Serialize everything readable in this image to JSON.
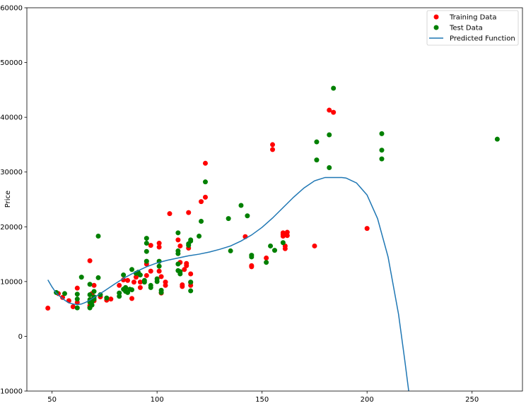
{
  "chart_data": {
    "type": "scatter",
    "title": "",
    "xlabel": "",
    "ylabel": "Price",
    "xlim": [
      38,
      274
    ],
    "ylim": [
      -10000,
      60000
    ],
    "xticks": [
      50,
      100,
      150,
      200,
      250
    ],
    "yticks": [
      -10000,
      0,
      10000,
      20000,
      30000,
      40000,
      50000,
      60000
    ],
    "grid": false,
    "legend_position": "top-right",
    "series": [
      {
        "name": "Training Data",
        "kind": "scatter",
        "color": "#ff0000",
        "points": [
          [
            48,
            5150
          ],
          [
            53,
            7800
          ],
          [
            55,
            7100
          ],
          [
            58,
            6500
          ],
          [
            60,
            5400
          ],
          [
            62,
            6200
          ],
          [
            62,
            8800
          ],
          [
            68,
            13800
          ],
          [
            68,
            5600
          ],
          [
            68,
            5300
          ],
          [
            69,
            6700
          ],
          [
            69,
            7800
          ],
          [
            70,
            9300
          ],
          [
            70,
            6500
          ],
          [
            73,
            7200
          ],
          [
            76,
            6600
          ],
          [
            78,
            6800
          ],
          [
            82,
            9300
          ],
          [
            84,
            10300
          ],
          [
            85,
            8900
          ],
          [
            86,
            10200
          ],
          [
            88,
            6900
          ],
          [
            89,
            9900
          ],
          [
            90,
            10800
          ],
          [
            91,
            11300
          ],
          [
            92,
            9900
          ],
          [
            92,
            8900
          ],
          [
            95,
            13200
          ],
          [
            95,
            11100
          ],
          [
            97,
            16600
          ],
          [
            97,
            11900
          ],
          [
            101,
            17000
          ],
          [
            101,
            16300
          ],
          [
            101,
            11900
          ],
          [
            102,
            10900
          ],
          [
            102,
            7900
          ],
          [
            104,
            9300
          ],
          [
            104,
            9900
          ],
          [
            106,
            22400
          ],
          [
            110,
            17600
          ],
          [
            111,
            16500
          ],
          [
            111,
            13500
          ],
          [
            112,
            9400
          ],
          [
            112,
            9100
          ],
          [
            113,
            12200
          ],
          [
            114,
            13300
          ],
          [
            114,
            12900
          ],
          [
            115,
            16100
          ],
          [
            115,
            22600
          ],
          [
            116,
            11400
          ],
          [
            116,
            9800
          ],
          [
            116,
            9300
          ],
          [
            121,
            24600
          ],
          [
            123,
            31600
          ],
          [
            123,
            25400
          ],
          [
            142,
            18200
          ],
          [
            145,
            12900
          ],
          [
            145,
            12700
          ],
          [
            152,
            14300
          ],
          [
            155,
            35000
          ],
          [
            155,
            34100
          ],
          [
            160,
            18900
          ],
          [
            160,
            18300
          ],
          [
            160,
            18600
          ],
          [
            161,
            16000
          ],
          [
            161,
            16500
          ],
          [
            162,
            18400
          ],
          [
            162,
            19000
          ],
          [
            175,
            16500
          ],
          [
            182,
            41300
          ],
          [
            184,
            40900
          ],
          [
            200,
            19700
          ]
        ]
      },
      {
        "name": "Test Data",
        "kind": "scatter",
        "color": "#008000",
        "points": [
          [
            52,
            8000
          ],
          [
            56,
            7800
          ],
          [
            62,
            5200
          ],
          [
            62,
            6800
          ],
          [
            62,
            7700
          ],
          [
            64,
            10800
          ],
          [
            68,
            9500
          ],
          [
            68,
            7600
          ],
          [
            68,
            6700
          ],
          [
            68,
            6200
          ],
          [
            68,
            5200
          ],
          [
            69,
            5700
          ],
          [
            69,
            6300
          ],
          [
            70,
            7200
          ],
          [
            70,
            8200
          ],
          [
            70,
            6800
          ],
          [
            72,
            18300
          ],
          [
            72,
            10700
          ],
          [
            73,
            7600
          ],
          [
            76,
            7000
          ],
          [
            82,
            7900
          ],
          [
            82,
            7300
          ],
          [
            84,
            11200
          ],
          [
            84,
            8600
          ],
          [
            85,
            8200
          ],
          [
            85,
            8900
          ],
          [
            86,
            8000
          ],
          [
            87,
            8600
          ],
          [
            88,
            12200
          ],
          [
            88,
            8500
          ],
          [
            90,
            11500
          ],
          [
            91,
            11700
          ],
          [
            92,
            11200
          ],
          [
            94,
            10200
          ],
          [
            94,
            9900
          ],
          [
            95,
            17900
          ],
          [
            95,
            17000
          ],
          [
            95,
            15500
          ],
          [
            95,
            13700
          ],
          [
            97,
            9300
          ],
          [
            97,
            8900
          ],
          [
            100,
            10500
          ],
          [
            100,
            10000
          ],
          [
            101,
            13700
          ],
          [
            101,
            12800
          ],
          [
            102,
            8400
          ],
          [
            102,
            8000
          ],
          [
            110,
            18900
          ],
          [
            110,
            15600
          ],
          [
            110,
            15100
          ],
          [
            110,
            13200
          ],
          [
            110,
            12000
          ],
          [
            111,
            11800
          ],
          [
            111,
            11400
          ],
          [
            115,
            16600
          ],
          [
            115,
            16900
          ],
          [
            116,
            17400
          ],
          [
            116,
            17600
          ],
          [
            116,
            9900
          ],
          [
            116,
            8300
          ],
          [
            120,
            18300
          ],
          [
            121,
            21000
          ],
          [
            123,
            28200
          ],
          [
            134,
            21500
          ],
          [
            135,
            15600
          ],
          [
            140,
            23900
          ],
          [
            143,
            22000
          ],
          [
            145,
            14800
          ],
          [
            145,
            14500
          ],
          [
            152,
            13500
          ],
          [
            154,
            16500
          ],
          [
            156,
            15700
          ],
          [
            160,
            17100
          ],
          [
            176,
            35500
          ],
          [
            176,
            32200
          ],
          [
            182,
            36800
          ],
          [
            182,
            30800
          ],
          [
            184,
            45300
          ],
          [
            207,
            37000
          ],
          [
            207,
            34000
          ],
          [
            207,
            32400
          ],
          [
            262,
            36000
          ]
        ]
      },
      {
        "name": "Predicted Function",
        "kind": "line",
        "color": "#1f77b4",
        "points": [
          [
            48,
            10300
          ],
          [
            50,
            9000
          ],
          [
            52,
            7900
          ],
          [
            54,
            7200
          ],
          [
            56,
            6600
          ],
          [
            58,
            6100
          ],
          [
            60,
            5900
          ],
          [
            62,
            5800
          ],
          [
            64,
            5900
          ],
          [
            66,
            6200
          ],
          [
            68,
            6600
          ],
          [
            70,
            7100
          ],
          [
            75,
            8300
          ],
          [
            80,
            9600
          ],
          [
            85,
            10800
          ],
          [
            90,
            11800
          ],
          [
            95,
            12700
          ],
          [
            100,
            13400
          ],
          [
            105,
            13900
          ],
          [
            110,
            14300
          ],
          [
            115,
            14700
          ],
          [
            120,
            15000
          ],
          [
            125,
            15400
          ],
          [
            130,
            15900
          ],
          [
            135,
            16500
          ],
          [
            140,
            17400
          ],
          [
            145,
            18500
          ],
          [
            150,
            19900
          ],
          [
            155,
            21600
          ],
          [
            160,
            23500
          ],
          [
            165,
            25400
          ],
          [
            170,
            27100
          ],
          [
            175,
            28400
          ],
          [
            180,
            29000
          ],
          [
            185,
            29000
          ],
          [
            188,
            29000
          ],
          [
            190,
            28900
          ],
          [
            195,
            28000
          ],
          [
            200,
            25800
          ],
          [
            205,
            21500
          ],
          [
            210,
            14500
          ],
          [
            215,
            4000
          ],
          [
            218,
            -4500
          ],
          [
            220,
            -10500
          ]
        ]
      }
    ]
  }
}
